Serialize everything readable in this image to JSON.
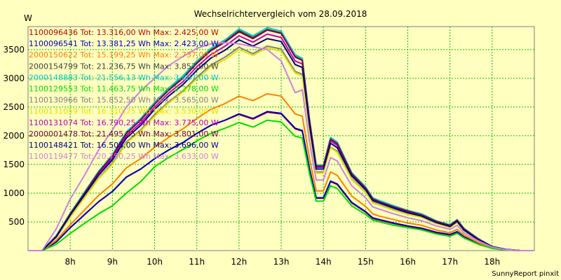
{
  "chart_data": {
    "type": "line",
    "title": "Wechselrichtervergleich vom 28.09.2018",
    "ylabel": "W",
    "footer": "SunnyReport pinxit",
    "grid": true,
    "legend_position": "top-left",
    "x_range": [
      7.0,
      19.0
    ],
    "ylim": [
      0,
      3900
    ],
    "x_ticks": [
      {
        "v": 8,
        "label": "8h"
      },
      {
        "v": 9,
        "label": "9h"
      },
      {
        "v": 10,
        "label": "10h"
      },
      {
        "v": 11,
        "label": "11h"
      },
      {
        "v": 12,
        "label": "12h"
      },
      {
        "v": 13,
        "label": "13h"
      },
      {
        "v": 14,
        "label": "14h"
      },
      {
        "v": 15,
        "label": "15h"
      },
      {
        "v": 16,
        "label": "16h"
      },
      {
        "v": 17,
        "label": "17h"
      },
      {
        "v": 18,
        "label": "18h"
      }
    ],
    "y_ticks": [
      500,
      1000,
      1500,
      2000,
      2500,
      3000,
      3500
    ],
    "x": [
      7.0,
      7.33,
      7.67,
      8.0,
      8.33,
      8.67,
      9.0,
      9.33,
      9.67,
      10.0,
      10.33,
      10.67,
      11.0,
      11.33,
      11.67,
      12.0,
      12.33,
      12.67,
      13.0,
      13.33,
      13.5,
      13.67,
      13.83,
      14.0,
      14.17,
      14.33,
      14.67,
      15.0,
      15.17,
      15.33,
      15.67,
      16.0,
      16.33,
      16.67,
      17.0,
      17.17,
      17.33,
      17.67,
      18.0,
      18.33,
      18.67,
      19.0
    ],
    "series": [
      {
        "name": "1100096436 Tot: 13.316,00 Wh Max: 2.425,00 W",
        "color": "#c00000",
        "values": [
          0,
          0,
          150,
          400,
          620,
          850,
          1030,
          1280,
          1420,
          1600,
          1750,
          1880,
          2040,
          2180,
          2270,
          2370,
          2290,
          2410,
          2380,
          2120,
          2080,
          1420,
          910,
          910,
          1200,
          1150,
          830,
          670,
          560,
          530,
          470,
          420,
          380,
          310,
          270,
          320,
          230,
          120,
          40,
          10,
          0,
          0
        ]
      },
      {
        "name": "1100096541 Tot: 13.381,25 Wh Max: 2.423,00 W",
        "color": "#0000c0",
        "values": [
          0,
          0,
          150,
          400,
          620,
          850,
          1030,
          1280,
          1420,
          1600,
          1750,
          1880,
          2040,
          2180,
          2270,
          2380,
          2300,
          2420,
          2390,
          2130,
          2090,
          1430,
          920,
          920,
          1210,
          1160,
          840,
          680,
          570,
          540,
          480,
          430,
          390,
          320,
          280,
          330,
          240,
          130,
          45,
          12,
          0,
          0
        ]
      },
      {
        "name": "2000150622 Tot: 15.199,25 Wh Max: 2.737,00 W",
        "color": "#ff8000",
        "values": [
          0,
          0,
          180,
          450,
          700,
          960,
          1160,
          1440,
          1600,
          1800,
          1970,
          2120,
          2300,
          2460,
          2560,
          2690,
          2610,
          2730,
          2690,
          2380,
          2340,
          1600,
          1040,
          1040,
          1370,
          1310,
          950,
          770,
          640,
          600,
          540,
          480,
          440,
          360,
          310,
          370,
          270,
          140,
          50,
          14,
          0,
          0
        ]
      },
      {
        "name": "2000154799 Tot: 21.236,75 Wh Max: 3.857,00 W",
        "color": "#404040",
        "values": [
          0,
          0,
          250,
          640,
          1000,
          1370,
          1650,
          2050,
          2280,
          2560,
          2800,
          3010,
          3270,
          3490,
          3640,
          3830,
          3710,
          3850,
          3790,
          3380,
          3320,
          2280,
          1480,
          1480,
          1950,
          1870,
          1350,
          1100,
          910,
          860,
          770,
          690,
          630,
          510,
          440,
          530,
          380,
          200,
          70,
          20,
          0,
          0
        ]
      },
      {
        "name": "2000148883 Tot: 21.556,13 Wh Max: 3.887,00 W",
        "color": "#00c8c8",
        "values": [
          0,
          0,
          260,
          650,
          1010,
          1380,
          1670,
          2070,
          2300,
          2580,
          2830,
          3040,
          3300,
          3520,
          3670,
          3860,
          3740,
          3880,
          3820,
          3410,
          3350,
          2300,
          1490,
          1490,
          1970,
          1890,
          1360,
          1110,
          920,
          870,
          780,
          700,
          640,
          520,
          450,
          540,
          390,
          210,
          72,
          20,
          0,
          0
        ]
      },
      {
        "name": "1100129553 Tot: 11.463,75 Wh Max: 2.278,00 W",
        "color": "#00dd00",
        "values": [
          0,
          0,
          110,
          300,
          470,
          640,
          780,
          1000,
          1200,
          1460,
          1620,
          1760,
          1910,
          2040,
          2130,
          2230,
          2150,
          2270,
          2240,
          1990,
          1960,
          1340,
          860,
          860,
          1130,
          1080,
          780,
          630,
          530,
          500,
          440,
          400,
          360,
          290,
          250,
          300,
          220,
          110,
          38,
          10,
          0,
          0
        ]
      },
      {
        "name": "1100130966 Tot: 15.852,50 Wh Max: 3.565,00 W",
        "color": "#808080",
        "values": [
          0,
          0,
          230,
          590,
          920,
          1260,
          1520,
          1890,
          2100,
          2370,
          2590,
          2780,
          3020,
          3230,
          3370,
          3540,
          3430,
          3560,
          3510,
          3120,
          3070,
          2110,
          1370,
          1370,
          1800,
          1730,
          1250,
          1020,
          840,
          800,
          710,
          640,
          580,
          470,
          410,
          490,
          350,
          190,
          65,
          18,
          0,
          0
        ]
      },
      {
        "name": "1100131059 Tot: 16.310,75 Wh Max: 3.530,00 W",
        "color": "#e0e000",
        "values": [
          0,
          0,
          230,
          580,
          910,
          1250,
          1500,
          1870,
          2080,
          2340,
          2570,
          2760,
          2990,
          3200,
          3330,
          3500,
          3400,
          3530,
          3470,
          3090,
          3040,
          2090,
          1350,
          1350,
          1790,
          1710,
          1240,
          1010,
          830,
          790,
          700,
          630,
          580,
          470,
          400,
          490,
          350,
          180,
          64,
          18,
          0,
          0
        ]
      },
      {
        "name": "1100131074 Tot: 16.790,25 Wh Max: 3.775,00 W",
        "color": "#c000c0",
        "values": [
          0,
          0,
          240,
          620,
          970,
          1330,
          1610,
          2000,
          2220,
          2500,
          2740,
          2940,
          3200,
          3410,
          3560,
          3740,
          3630,
          3770,
          3710,
          3300,
          3250,
          2230,
          1450,
          1450,
          1910,
          1830,
          1320,
          1080,
          890,
          840,
          750,
          680,
          610,
          500,
          430,
          520,
          370,
          200,
          68,
          19,
          0,
          0
        ]
      },
      {
        "name": "2000001478 Tot: 21.495,25 Wh Max: 3.801,00 W",
        "color": "#800040",
        "values": [
          0,
          0,
          250,
          640,
          990,
          1360,
          1650,
          2040,
          2270,
          2550,
          2790,
          3000,
          3260,
          3480,
          3630,
          3810,
          3690,
          3840,
          3780,
          3370,
          3310,
          2270,
          1470,
          1470,
          1940,
          1860,
          1340,
          1090,
          900,
          850,
          760,
          690,
          620,
          510,
          440,
          530,
          380,
          200,
          70,
          20,
          0,
          0
        ]
      },
      {
        "name": "1100148421 Tot: 16.505,00 Wh Max: 3.696,00 W",
        "color": "#000080",
        "values": [
          0,
          0,
          240,
          620,
          960,
          1310,
          1580,
          1960,
          2180,
          2460,
          2690,
          2890,
          3140,
          3350,
          3490,
          3670,
          3560,
          3690,
          3640,
          3240,
          3190,
          2190,
          1420,
          1420,
          1870,
          1790,
          1300,
          1060,
          870,
          830,
          740,
          660,
          600,
          490,
          420,
          510,
          360,
          190,
          67,
          19,
          0,
          0
        ]
      },
      {
        "name": "1100119477 Tot: 20.750,25 Wh Max: 3.633,00 W",
        "color": "#d080e0",
        "values": [
          0,
          0,
          380,
          900,
          1300,
          1750,
          2100,
          2500,
          2780,
          3000,
          3220,
          3380,
          3520,
          3600,
          3620,
          3600,
          3550,
          3500,
          3300,
          2750,
          2800,
          1900,
          1230,
          1230,
          1620,
          1560,
          1130,
          920,
          760,
          720,
          640,
          570,
          520,
          430,
          370,
          440,
          310,
          170,
          60,
          16,
          0,
          0
        ]
      }
    ]
  }
}
